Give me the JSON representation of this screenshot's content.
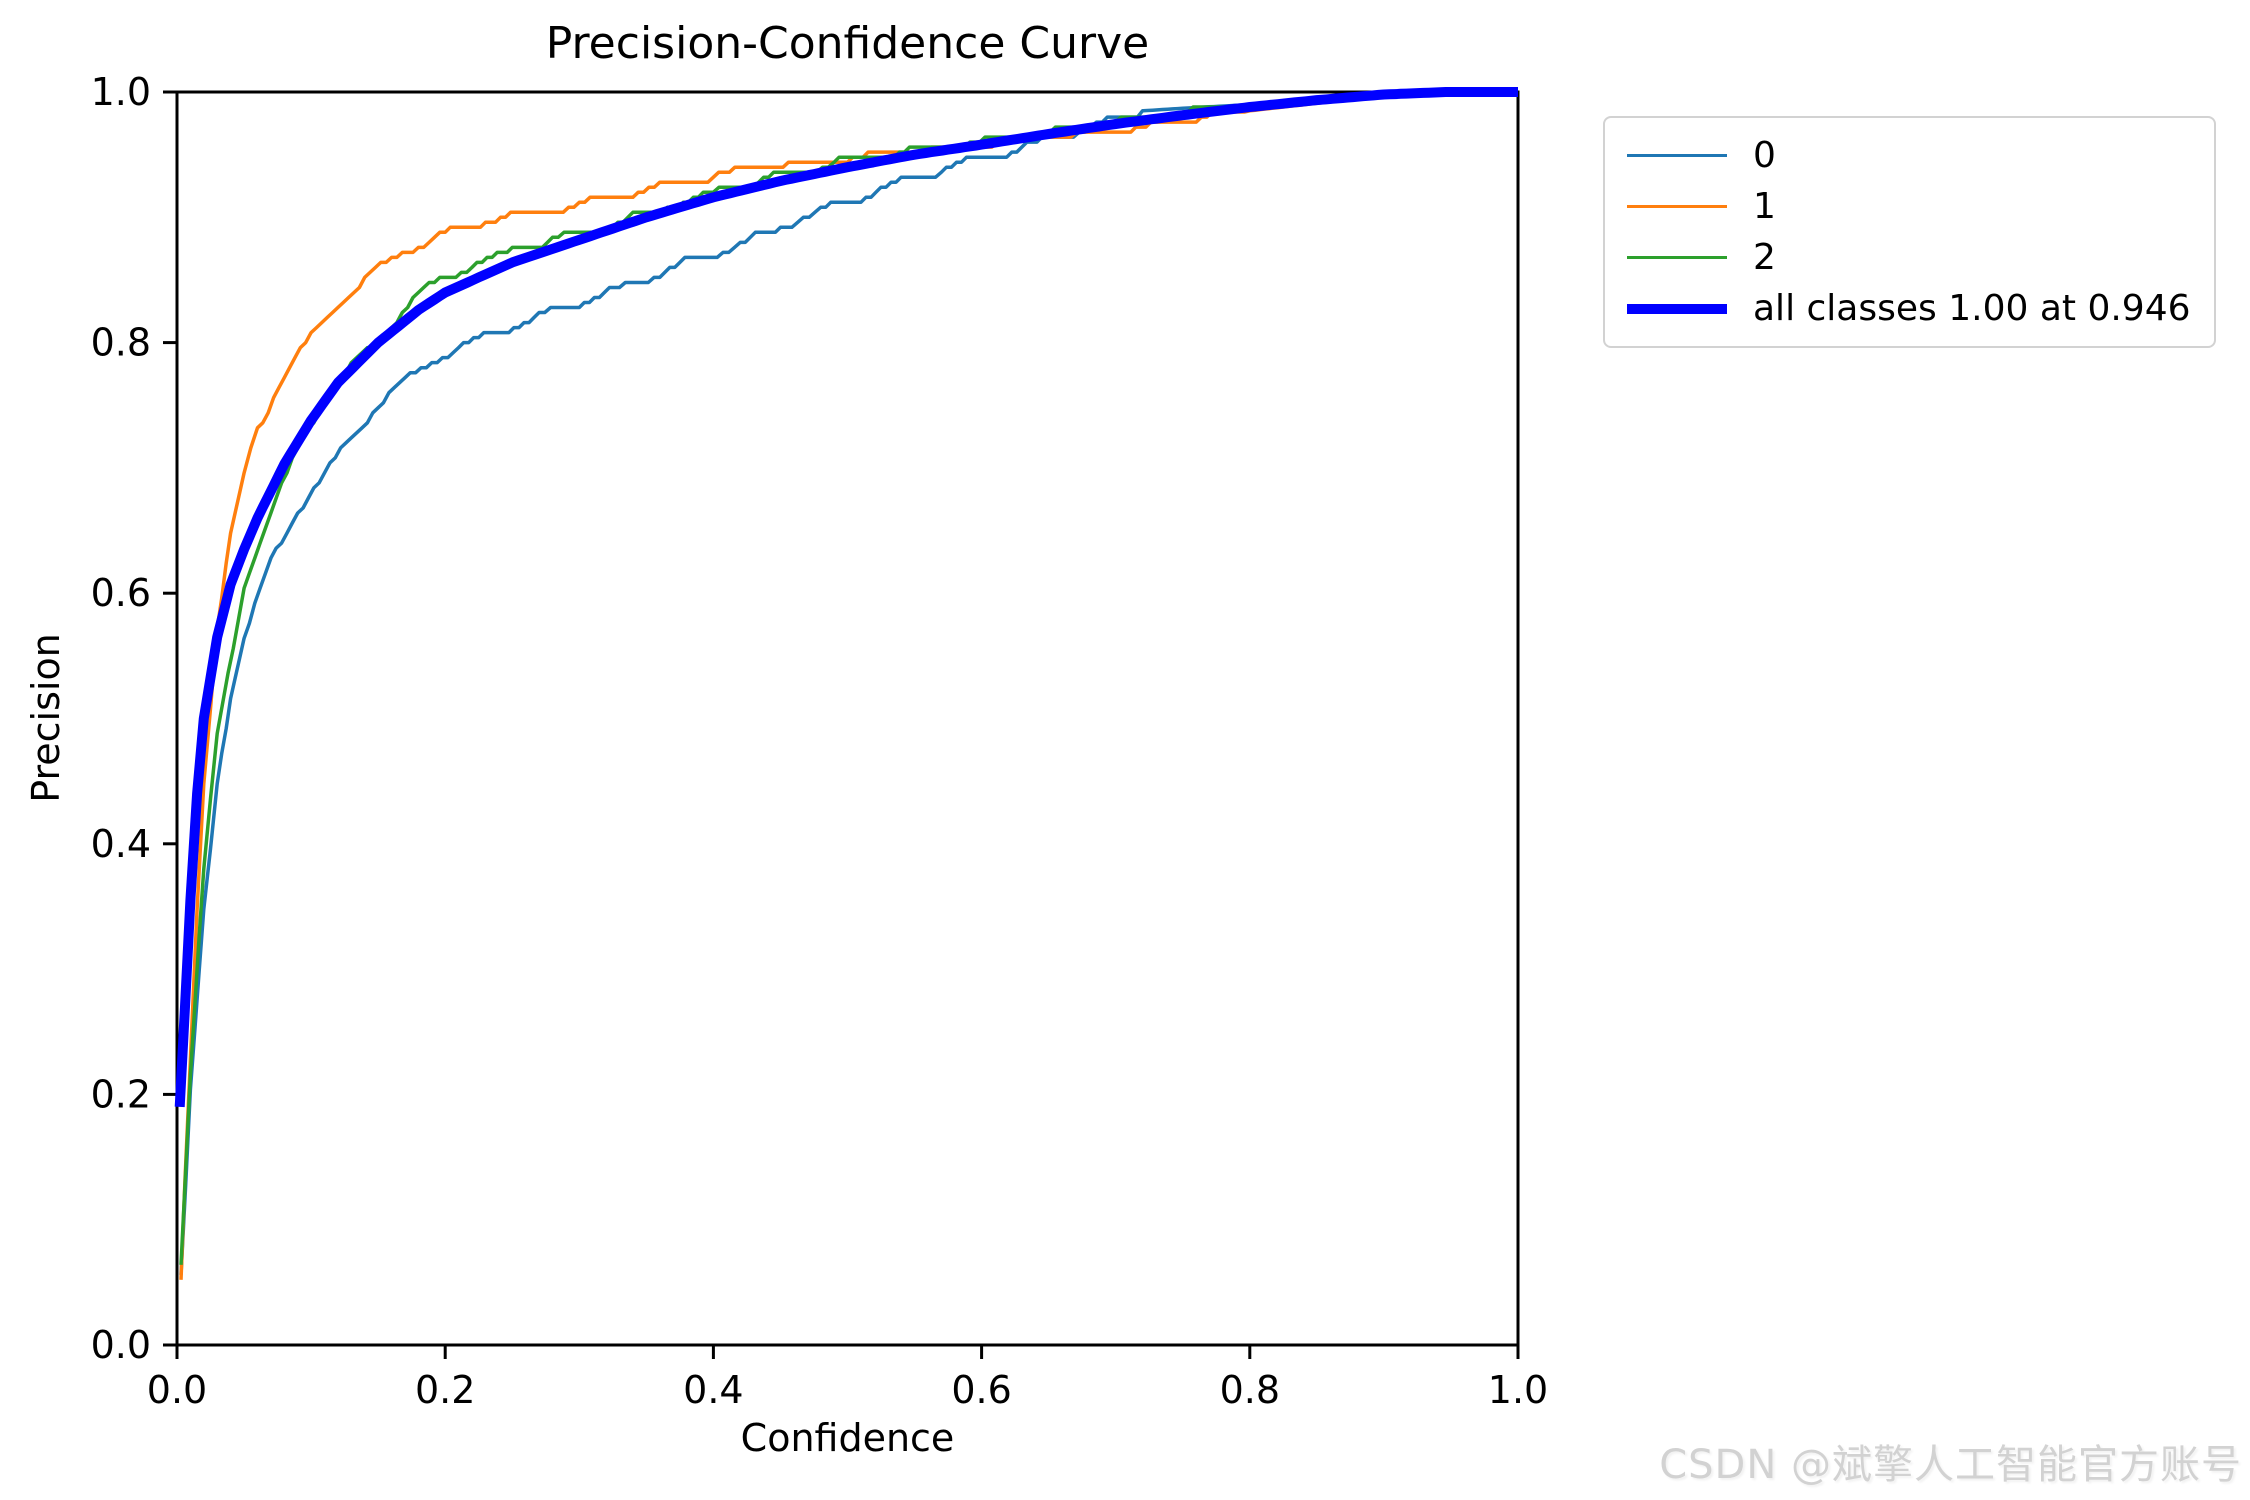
{
  "chart_data": {
    "type": "line",
    "title": "Precision-Confidence Curve",
    "xlabel": "Confidence",
    "ylabel": "Precision",
    "xlim": [
      0.0,
      1.0
    ],
    "ylim": [
      0.0,
      1.0
    ],
    "x_ticks": [
      "0.0",
      "0.2",
      "0.4",
      "0.6",
      "0.8",
      "1.0"
    ],
    "y_ticks": [
      "0.0",
      "0.2",
      "0.4",
      "0.6",
      "0.8",
      "1.0"
    ],
    "grid": false,
    "legend_position": "outside upper right",
    "series": [
      {
        "name": "class-0",
        "label": "0",
        "color": "#1f77b4",
        "width": 3.5,
        "x": [
          0.003,
          0.01,
          0.02,
          0.03,
          0.04,
          0.05,
          0.07,
          0.09,
          0.11,
          0.13,
          0.15,
          0.17,
          0.19,
          0.21,
          0.24,
          0.27,
          0.3,
          0.33,
          0.36,
          0.39,
          0.42,
          0.45,
          0.48,
          0.51,
          0.54,
          0.57,
          0.6,
          0.63,
          0.66,
          0.69,
          0.72,
          0.75,
          0.8,
          0.85,
          0.9,
          1.0
        ],
        "y": [
          0.055,
          0.2,
          0.345,
          0.45,
          0.52,
          0.565,
          0.625,
          0.665,
          0.695,
          0.725,
          0.75,
          0.77,
          0.785,
          0.795,
          0.81,
          0.82,
          0.832,
          0.843,
          0.855,
          0.868,
          0.878,
          0.892,
          0.905,
          0.916,
          0.928,
          0.938,
          0.948,
          0.955,
          0.965,
          0.975,
          0.985,
          0.987,
          0.99,
          0.995,
          0.999,
          1.0
        ]
      },
      {
        "name": "class-1",
        "label": "1",
        "color": "#ff7f0e",
        "width": 3.5,
        "x": [
          0.003,
          0.006,
          0.01,
          0.015,
          0.02,
          0.03,
          0.04,
          0.05,
          0.06,
          0.08,
          0.1,
          0.12,
          0.14,
          0.16,
          0.18,
          0.2,
          0.23,
          0.26,
          0.3,
          0.34,
          0.38,
          0.42,
          0.46,
          0.5,
          0.55,
          0.6,
          0.65,
          0.7,
          0.73,
          0.76,
          0.8,
          0.85,
          0.9,
          0.95,
          1.0
        ],
        "y": [
          0.05,
          0.13,
          0.23,
          0.35,
          0.45,
          0.575,
          0.645,
          0.695,
          0.73,
          0.775,
          0.805,
          0.832,
          0.85,
          0.866,
          0.878,
          0.887,
          0.897,
          0.903,
          0.91,
          0.92,
          0.929,
          0.936,
          0.942,
          0.9465,
          0.952,
          0.9565,
          0.962,
          0.9685,
          0.972,
          0.979,
          0.985,
          0.991,
          0.9965,
          1.0,
          1.0
        ]
      },
      {
        "name": "class-2",
        "label": "2",
        "color": "#2ca02c",
        "width": 3.5,
        "x": [
          0.003,
          0.01,
          0.02,
          0.03,
          0.05,
          0.07,
          0.09,
          0.11,
          0.13,
          0.15,
          0.16,
          0.18,
          0.2,
          0.22,
          0.25,
          0.28,
          0.31,
          0.34,
          0.37,
          0.4,
          0.43,
          0.46,
          0.49,
          0.52,
          0.55,
          0.58,
          0.61,
          0.64,
          0.67,
          0.7,
          0.75,
          0.8,
          0.85,
          0.9,
          0.95,
          1.0
        ],
        "y": [
          0.065,
          0.22,
          0.38,
          0.485,
          0.605,
          0.665,
          0.715,
          0.755,
          0.78,
          0.8,
          0.816,
          0.838,
          0.852,
          0.862,
          0.873,
          0.882,
          0.89,
          0.9,
          0.91,
          0.919,
          0.928,
          0.936,
          0.944,
          0.949,
          0.953,
          0.958,
          0.961,
          0.966,
          0.971,
          0.976,
          0.983,
          0.989,
          0.994,
          0.9985,
          1.0,
          1.0
        ]
      },
      {
        "name": "all-classes",
        "label": "all classes 1.00 at 0.946",
        "color": "#0000ff",
        "width": 10,
        "x": [
          0.002,
          0.006,
          0.01,
          0.015,
          0.02,
          0.03,
          0.04,
          0.05,
          0.06,
          0.08,
          0.1,
          0.12,
          0.15,
          0.18,
          0.2,
          0.25,
          0.3,
          0.35,
          0.4,
          0.45,
          0.5,
          0.55,
          0.6,
          0.65,
          0.7,
          0.75,
          0.8,
          0.85,
          0.9,
          0.946,
          1.0
        ],
        "y": [
          0.19,
          0.27,
          0.355,
          0.44,
          0.5,
          0.565,
          0.607,
          0.635,
          0.66,
          0.703,
          0.738,
          0.768,
          0.8,
          0.826,
          0.84,
          0.864,
          0.882,
          0.9,
          0.916,
          0.929,
          0.94,
          0.95,
          0.958,
          0.9665,
          0.9745,
          0.9815,
          0.988,
          0.9935,
          0.998,
          1.0,
          1.0
        ]
      }
    ],
    "annotations": {
      "best_all_classes_precision": "1.00",
      "best_all_classes_confidence": "0.946"
    }
  },
  "watermark": {
    "text": "CSDN @斌擎人工智能官方账号",
    "color": "#d2d2d2"
  }
}
